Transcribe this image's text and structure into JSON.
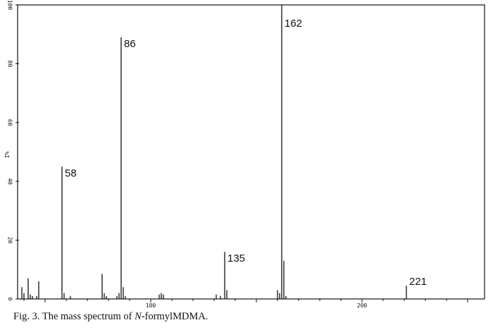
{
  "caption": {
    "prefix": "Fig. 3. The mass spectrum of ",
    "italic": "N",
    "suffix": "-formylMDMA."
  },
  "chart_data": {
    "type": "bar",
    "ylabel": "%I",
    "xlim": [
      37,
      258
    ],
    "ylim": [
      0,
      100
    ],
    "x_ticks": [
      100,
      200
    ],
    "y_ticks": [
      0,
      20,
      40,
      60,
      80,
      100
    ],
    "y_tick_labels": [
      "0",
      "20",
      "40",
      "60",
      "80",
      "100"
    ],
    "x_tick_labels": [
      "100",
      "200"
    ],
    "peaks": [
      {
        "mz": 39,
        "intensity": 4
      },
      {
        "mz": 40,
        "intensity": 2
      },
      {
        "mz": 42,
        "intensity": 7
      },
      {
        "mz": 43,
        "intensity": 1.5
      },
      {
        "mz": 44,
        "intensity": 1
      },
      {
        "mz": 46,
        "intensity": 1
      },
      {
        "mz": 47,
        "intensity": 6
      },
      {
        "mz": 58,
        "intensity": 45,
        "label": "58"
      },
      {
        "mz": 59,
        "intensity": 2
      },
      {
        "mz": 62,
        "intensity": 1
      },
      {
        "mz": 77,
        "intensity": 8.5
      },
      {
        "mz": 78,
        "intensity": 2
      },
      {
        "mz": 79,
        "intensity": 1
      },
      {
        "mz": 84,
        "intensity": 1
      },
      {
        "mz": 85,
        "intensity": 2
      },
      {
        "mz": 86,
        "intensity": 89,
        "label": "86"
      },
      {
        "mz": 87,
        "intensity": 4
      },
      {
        "mz": 88,
        "intensity": 1
      },
      {
        "mz": 104,
        "intensity": 1.5
      },
      {
        "mz": 105,
        "intensity": 2
      },
      {
        "mz": 106,
        "intensity": 1.5
      },
      {
        "mz": 131,
        "intensity": 1.5
      },
      {
        "mz": 133,
        "intensity": 1
      },
      {
        "mz": 135,
        "intensity": 16,
        "label": "135"
      },
      {
        "mz": 136,
        "intensity": 3
      },
      {
        "mz": 160,
        "intensity": 3
      },
      {
        "mz": 161,
        "intensity": 2
      },
      {
        "mz": 162,
        "intensity": 100,
        "label": "162"
      },
      {
        "mz": 163,
        "intensity": 13
      },
      {
        "mz": 164,
        "intensity": 1
      },
      {
        "mz": 221,
        "intensity": 4.5,
        "label": "221"
      }
    ]
  }
}
